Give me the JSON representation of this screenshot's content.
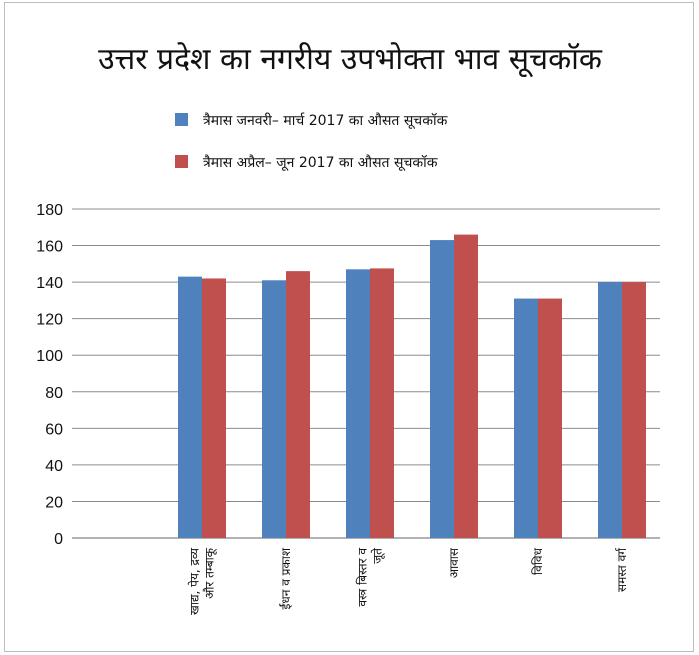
{
  "chart_data": {
    "type": "bar",
    "title": "उत्तर प्रदेश का नगरीय उपभोक्ता भाव सूचकॉक",
    "categories": [
      [
        "खाद्य, पेय, द्रव्य",
        "और तम्बाकू"
      ],
      [
        "ईंधन व प्रकाश"
      ],
      [
        "वस्त्र बिस्तर व",
        "जूते"
      ],
      [
        "आवास"
      ],
      [
        "विविध"
      ],
      [
        "समस्त वर्ग"
      ]
    ],
    "series": [
      {
        "name": "त्रैमास   जनवरी– मार्च 2017 का औसत सूचकॉक",
        "color": "#4f81bd",
        "values": [
          143,
          141,
          147,
          163,
          131,
          140
        ]
      },
      {
        "name": "त्रैमास   अप्रैल– जून 2017 का औसत सूचकॉक",
        "color": "#c0504d",
        "values": [
          142,
          146,
          147.5,
          166,
          131,
          140
        ]
      }
    ],
    "ylim": [
      0,
      180
    ],
    "yticks": [
      0,
      20,
      40,
      60,
      80,
      100,
      120,
      140,
      160,
      180
    ],
    "grid": true,
    "legend": "top"
  }
}
